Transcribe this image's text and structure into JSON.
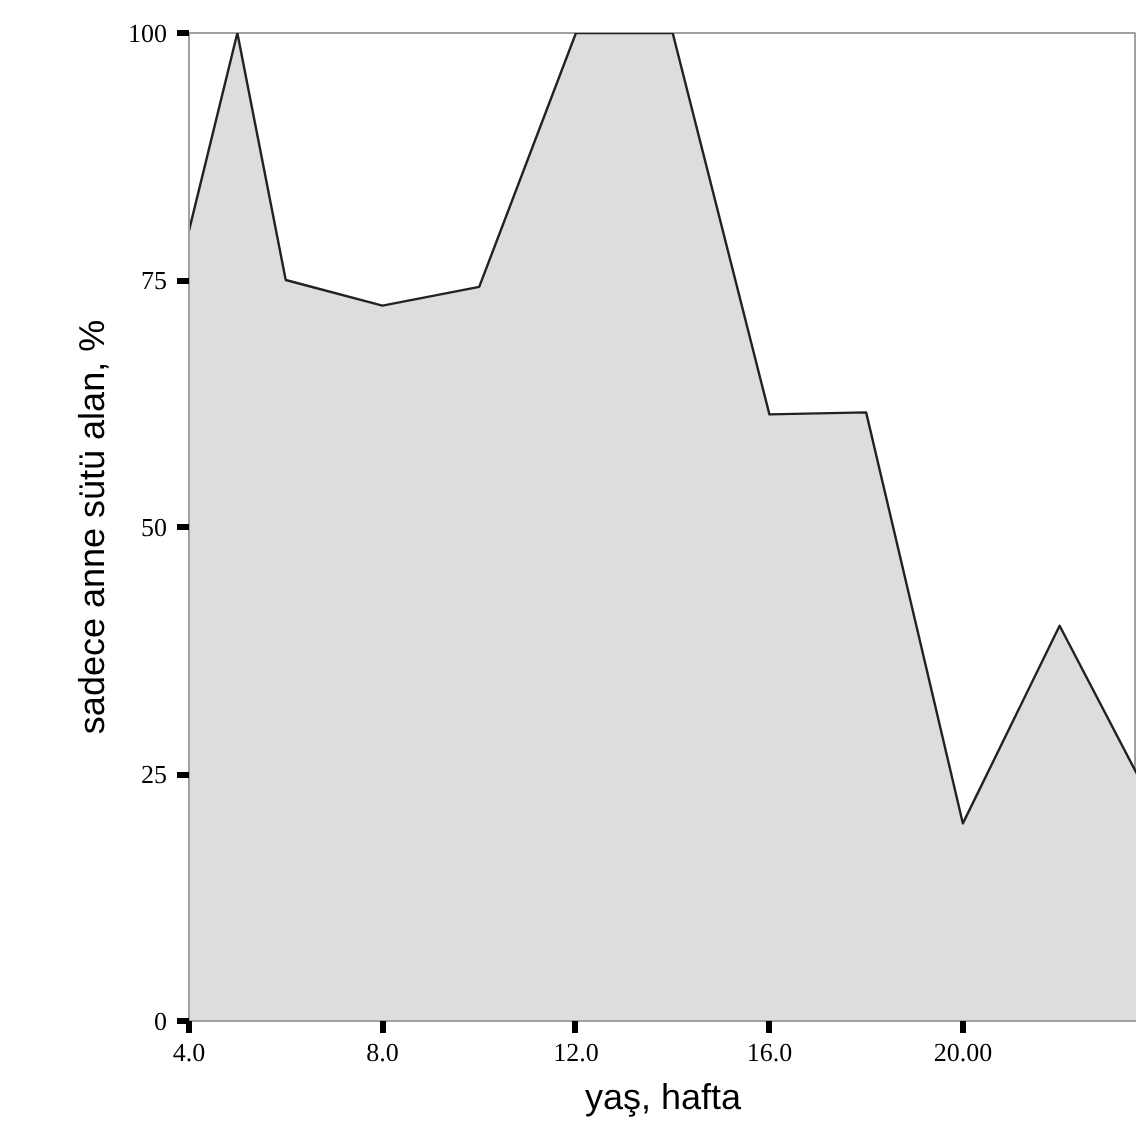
{
  "chart_data": {
    "type": "area",
    "xlabel": "yaş, hafta",
    "ylabel": "sadece anne sütü alan, %",
    "x": [
      4,
      5,
      6,
      8,
      10,
      12,
      14,
      16,
      18,
      20,
      22,
      23.6
    ],
    "series": [
      {
        "color": "#dcdddf",
        "values": [
          80,
          100,
          75,
          72.4,
          74.3,
          100,
          100,
          61.4,
          61.6,
          20,
          40,
          25
        ]
      }
    ],
    "xlim": [
      4,
      23.6
    ],
    "ylim": [
      0,
      100
    ],
    "xticks": [
      {
        "value": 4,
        "label": "4.0"
      },
      {
        "value": 8,
        "label": "8.0"
      },
      {
        "value": 12,
        "label": "12.0"
      },
      {
        "value": 16,
        "label": "16.0"
      },
      {
        "value": 20,
        "label": "20.00"
      }
    ],
    "yticks": [
      0,
      25,
      50,
      75,
      100
    ],
    "grid": false
  }
}
